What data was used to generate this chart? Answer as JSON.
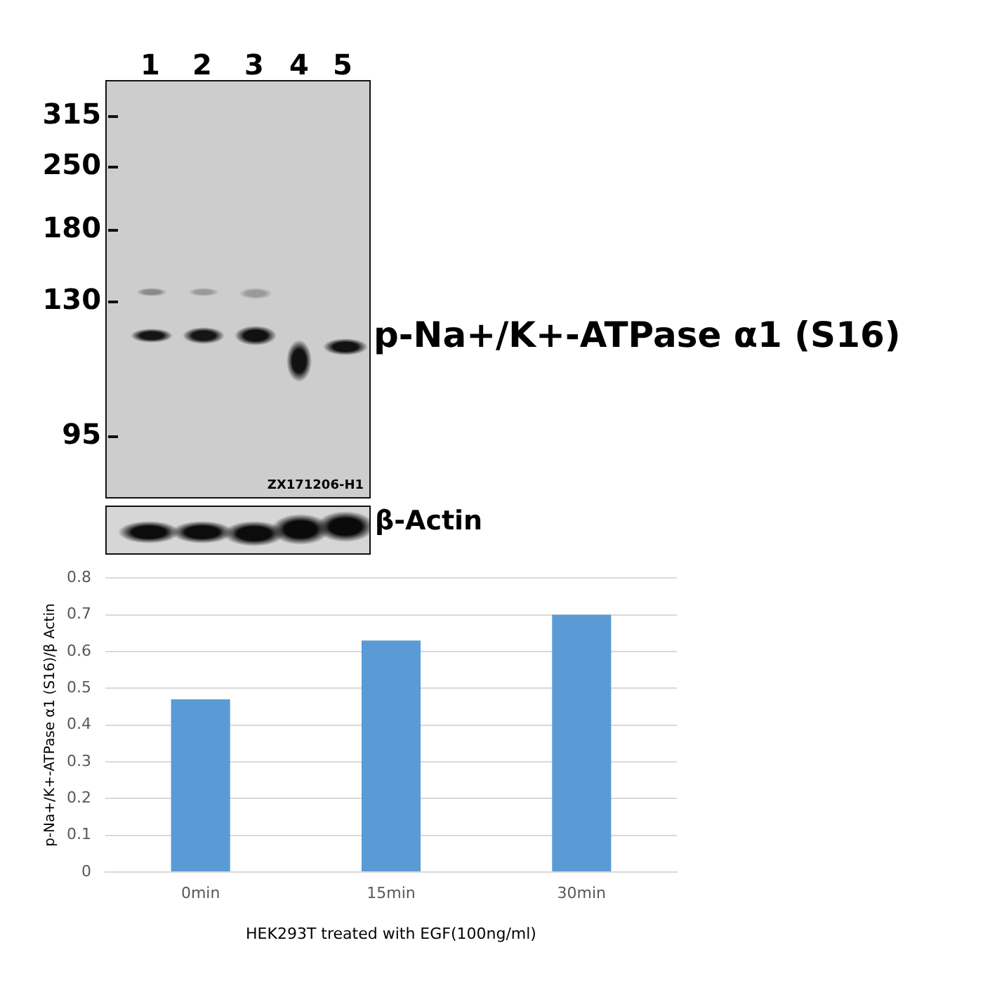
{
  "chart_data": {
    "type": "bar",
    "categories": [
      "0min",
      "15min",
      "30min"
    ],
    "values": [
      0.47,
      0.63,
      0.7
    ],
    "color": "#5b9bd5",
    "xlabel": "HEK293T treated with EGF(100ng/ml)",
    "ylabel": "p-Na+/K+-ATPase α1 (S16)/β Actin",
    "ylim": [
      0,
      0.8
    ],
    "yticks": [
      0,
      0.1,
      0.2,
      0.3,
      0.4,
      0.5,
      0.6,
      0.7,
      0.8
    ],
    "grid": "y",
    "annotations": [
      "1",
      "2",
      "3",
      "4",
      "5",
      "315",
      "250",
      "180",
      "130",
      "95",
      "p-Na+/K+-ATPase α1 (S16)",
      "β-Actin",
      "ZX171206-H1"
    ]
  }
}
